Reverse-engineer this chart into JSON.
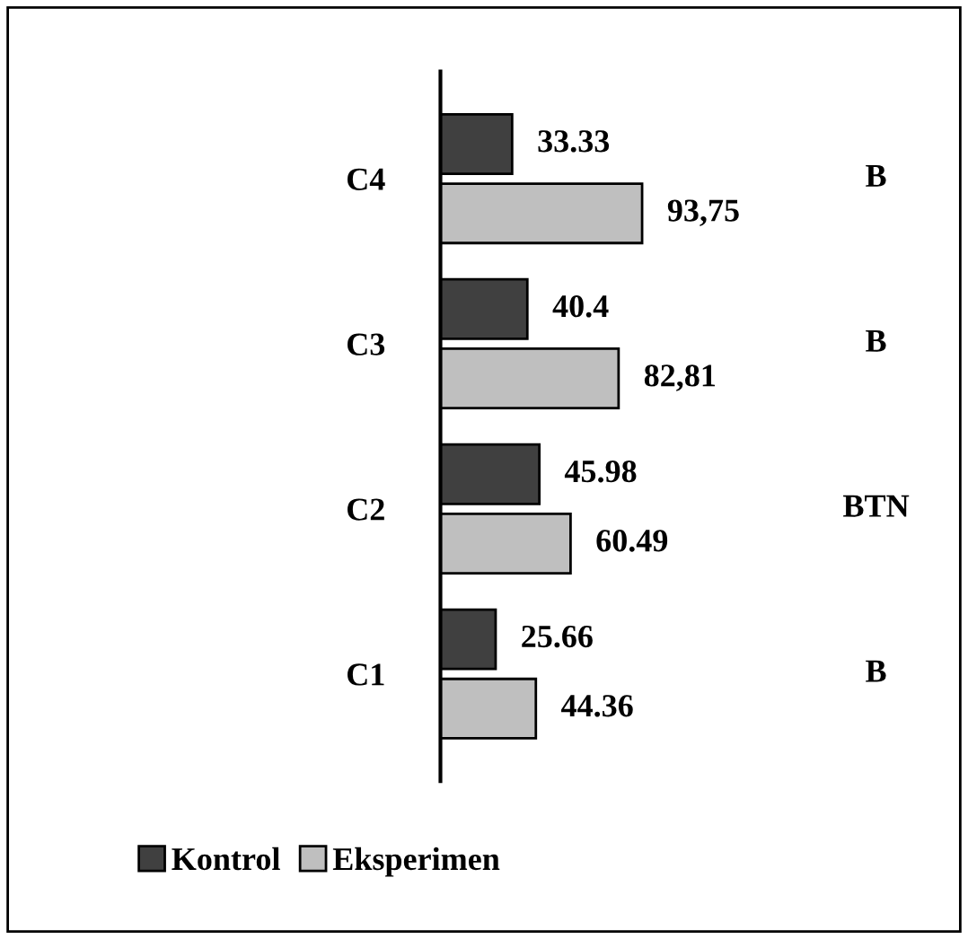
{
  "chart_data": {
    "type": "bar",
    "orientation": "horizontal",
    "categories": [
      "C4",
      "C3",
      "C2",
      "C1"
    ],
    "series": [
      {
        "name": "Kontrol",
        "color": "#404040",
        "values": [
          33.33,
          40.4,
          45.98,
          25.66
        ],
        "value_labels": [
          "33.33",
          "40.4",
          "45.98",
          "25.66"
        ]
      },
      {
        "name": "Eksperimen",
        "color": "#bfbfbf",
        "values": [
          93.75,
          82.81,
          60.49,
          44.36
        ],
        "value_labels": [
          "93,75",
          "82,81",
          "60.49",
          "44.36"
        ]
      }
    ],
    "annotations": [
      "B",
      "B",
      "BTN",
      "B"
    ],
    "legend": "bottom",
    "grid": false
  }
}
